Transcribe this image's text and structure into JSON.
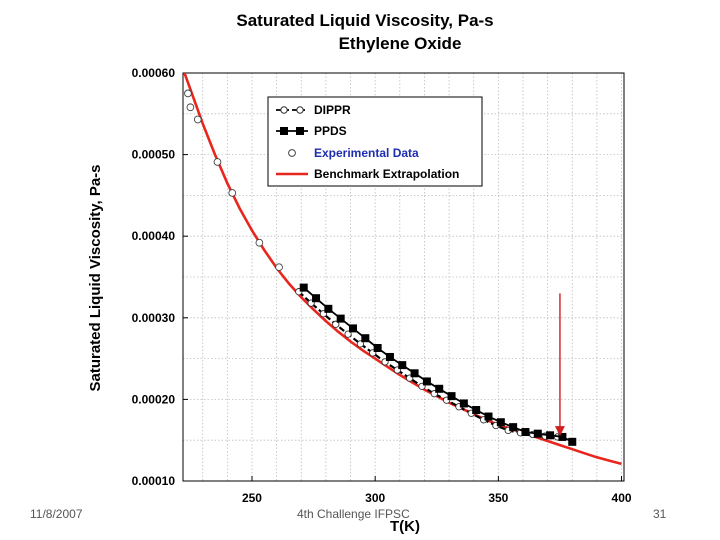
{
  "chart_data": {
    "type": "line",
    "title": "Saturated Liquid Viscosity, Pa-s",
    "subtitle": "Ethylene Oxide",
    "xlabel": "T(K)",
    "ylabel": "Saturated Liquid Viscosity, Pa-s",
    "xlim": [
      222,
      401
    ],
    "ylim": [
      0.0001,
      0.0006
    ],
    "x_ticks": [
      "250",
      "300",
      "350",
      "400"
    ],
    "x_tick_values": [
      250,
      300,
      350,
      400
    ],
    "y_ticks": [
      "0.00010",
      "0.00020",
      "0.00030",
      "0.00040",
      "0.00050",
      "0.00060"
    ],
    "y_tick_values": [
      0.0001,
      0.0002,
      0.0003,
      0.0004,
      0.0005,
      0.0006
    ],
    "grid": true,
    "legend": "top-right",
    "series": [
      {
        "name": "DIPPR",
        "style": "dashed-line-open-circle",
        "x": [
          269,
          274,
          279,
          284,
          289,
          294,
          299,
          304,
          309,
          314,
          319,
          324,
          329,
          334,
          339,
          344,
          349,
          354,
          359,
          364,
          369,
          374
        ],
        "y": [
          0.000332,
          0.000318,
          0.000305,
          0.000292,
          0.00028,
          0.000268,
          0.000257,
          0.000246,
          0.000236,
          0.000226,
          0.000216,
          0.000207,
          0.000199,
          0.000191,
          0.000183,
          0.000175,
          0.000168,
          0.000162,
          0.000159,
          0.000157,
          0.000155,
          0.000154
        ]
      },
      {
        "name": "PPDS",
        "style": "line-filled-square",
        "x": [
          271,
          276,
          281,
          286,
          291,
          296,
          301,
          306,
          311,
          316,
          321,
          326,
          331,
          336,
          341,
          346,
          351,
          356,
          361,
          366,
          371,
          376,
          380
        ],
        "y": [
          0.000337,
          0.000324,
          0.000311,
          0.000299,
          0.000287,
          0.000275,
          0.000263,
          0.000252,
          0.000242,
          0.000232,
          0.000222,
          0.000213,
          0.000204,
          0.000195,
          0.000187,
          0.000179,
          0.000172,
          0.000166,
          0.00016,
          0.000158,
          0.000156,
          0.000154,
          0.000148
        ]
      },
      {
        "name": "Experimental Data",
        "style": "open-circle",
        "x": [
          224,
          225,
          228,
          236,
          242,
          253,
          261
        ],
        "y": [
          0.000575,
          0.000558,
          0.000543,
          0.000491,
          0.000453,
          0.000392,
          0.000362
        ]
      },
      {
        "name": "Benchmark Extrapolation",
        "style": "red-line",
        "x": [
          222,
          225,
          230,
          235,
          240,
          245,
          250,
          255,
          260,
          265,
          270,
          275,
          280,
          285,
          290,
          295,
          300,
          305,
          310,
          315,
          320,
          325,
          330,
          335,
          340,
          345,
          350,
          355,
          360,
          365,
          370,
          375,
          380,
          385,
          390,
          395,
          400
        ],
        "y": [
          0.000605,
          0.00058,
          0.000538,
          0.0005,
          0.000465,
          0.000434,
          0.000407,
          0.000383,
          0.000361,
          0.000342,
          0.000325,
          0.00031,
          0.000296,
          0.000283,
          0.000271,
          0.00026,
          0.00025,
          0.00024,
          0.00023,
          0.000221,
          0.000212,
          0.000204,
          0.000196,
          0.000189,
          0.000182,
          0.000175,
          0.000169,
          0.000164,
          0.000159,
          0.000154,
          0.000149,
          0.000144,
          0.000139,
          0.000134,
          0.000129,
          0.000125,
          0.000121
        ]
      }
    ],
    "annotation_arrow": {
      "x": 375,
      "y_from": 0.00033,
      "y_to": 0.000155
    },
    "colors": {
      "benchmark": "#e8261e",
      "ppds": "#000000",
      "dippr": "#000000",
      "experimental": "#444444",
      "grid": "#bdbdbd",
      "experimental_label": "#1f2db0"
    }
  },
  "footer": {
    "date": "11/8/2007",
    "event": "4th Challenge IFPSC",
    "page": "31"
  }
}
